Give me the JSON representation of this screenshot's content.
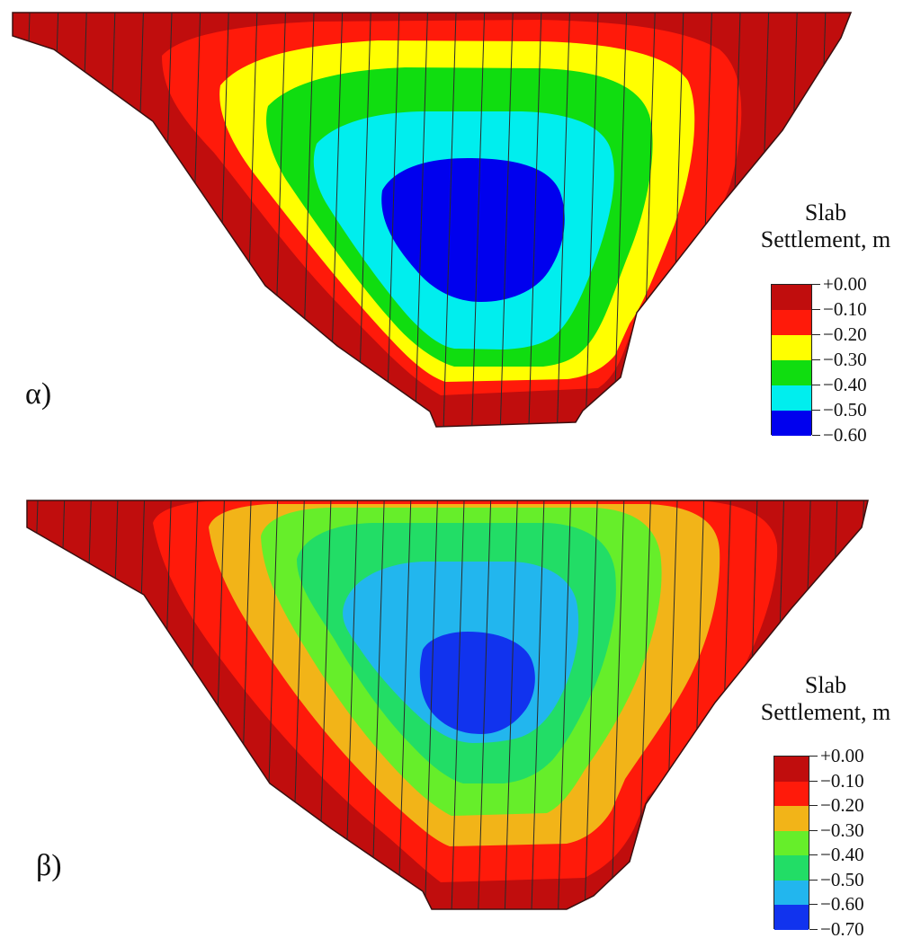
{
  "colors": {
    "outline": "#3a1010",
    "joint_line": "#2a2a2a"
  },
  "panels": [
    {
      "id": "a",
      "label": "α)",
      "legend": {
        "title_line1": "Slab",
        "title_line2": "Settlement, m",
        "ticks": [
          "+0.00",
          "−0.10",
          "−0.20",
          "−0.30",
          "−0.40",
          "−0.50",
          "−0.60"
        ],
        "colors": [
          "#c00d0d",
          "#ff1a0a",
          "#ffff00",
          "#10dd10",
          "#00eeee",
          "#0000ee"
        ]
      }
    },
    {
      "id": "b",
      "label": "β)",
      "legend": {
        "title_line1": "Slab",
        "title_line2": "Settlement, m",
        "ticks": [
          "+0.00",
          "−0.10",
          "−0.20",
          "−0.30",
          "−0.40",
          "−0.50",
          "−0.60",
          "−0.70"
        ],
        "colors": [
          "#c00d0d",
          "#ff1a0a",
          "#f2b418",
          "#66ee2a",
          "#22dd66",
          "#22b6ee",
          "#1133ee"
        ]
      }
    }
  ]
}
